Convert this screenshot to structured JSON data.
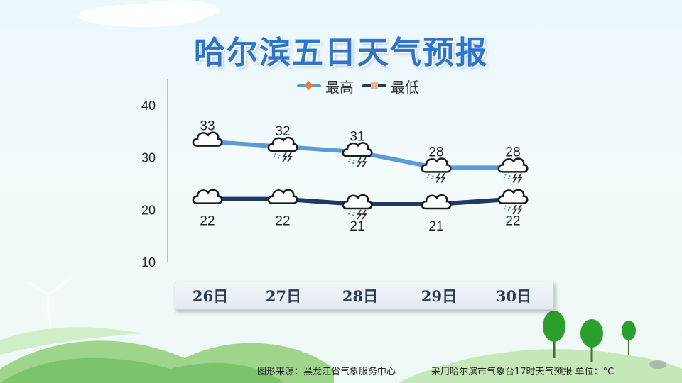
{
  "title": "哈尔滨五日天气预报",
  "footer": {
    "source": "图形来源：黑龙江省气象服务中心",
    "note": "采用哈尔滨市气象台17时天气预报 单位：°C"
  },
  "colors": {
    "high": "#5b9bd5",
    "low": "#1f3864",
    "high_marker": "#ed7d31",
    "low_marker": "#f4b183",
    "title": "#2f74c8"
  },
  "chart_data": {
    "type": "line",
    "title": "哈尔滨五日天气预报",
    "categories": [
      "26日",
      "27日",
      "28日",
      "29日",
      "30日"
    ],
    "series": [
      {
        "name": "最高",
        "values": [
          33,
          32,
          31,
          28,
          28
        ],
        "icons": [
          "cloudy-icon",
          "thunderstorm-icon",
          "thunderstorm-icon",
          "thunderstorm-icon",
          "thunderstorm-icon"
        ]
      },
      {
        "name": "最低",
        "values": [
          22,
          22,
          21,
          21,
          22
        ],
        "icons": [
          "cloudy-icon",
          "cloudy-icon",
          "thunderstorm-icon",
          "cloudy-icon",
          "thunderstorm-icon"
        ]
      }
    ],
    "yticks": [
      10,
      20,
      30,
      40
    ],
    "ylim": [
      10,
      40
    ],
    "xlabel": "",
    "ylabel": "",
    "legend_position": "top-center",
    "grid": false
  }
}
